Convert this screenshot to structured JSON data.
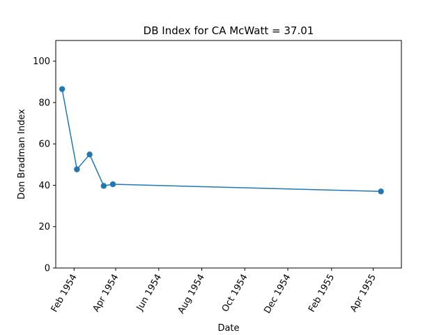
{
  "chart_data": {
    "type": "line",
    "title": "DB Index for CA McWatt = 37.01",
    "xlabel": "Date",
    "ylabel": "Don Bradman Index",
    "ylim": [
      0,
      110
    ],
    "xlim": [
      "1954-01-06",
      "1955-05-11"
    ],
    "y_ticks": [
      0,
      20,
      40,
      60,
      80,
      100
    ],
    "x_ticks": [
      {
        "date": "1954-02-01",
        "label": "Feb 1954"
      },
      {
        "date": "1954-04-01",
        "label": "Apr 1954"
      },
      {
        "date": "1954-06-01",
        "label": "Jun 1954"
      },
      {
        "date": "1954-08-01",
        "label": "Aug 1954"
      },
      {
        "date": "1954-10-01",
        "label": "Oct 1954"
      },
      {
        "date": "1954-12-01",
        "label": "Dec 1954"
      },
      {
        "date": "1955-02-01",
        "label": "Feb 1955"
      },
      {
        "date": "1955-04-01",
        "label": "Apr 1955"
      }
    ],
    "series": [
      {
        "color": "#1f77b4",
        "marker": "circle",
        "points": [
          {
            "x": "1954-01-15",
            "y": 86.5
          },
          {
            "x": "1954-02-05",
            "y": 47.7
          },
          {
            "x": "1954-02-23",
            "y": 54.9
          },
          {
            "x": "1954-03-15",
            "y": 39.7
          },
          {
            "x": "1954-03-28",
            "y": 40.5
          },
          {
            "x": "1955-04-12",
            "y": 37.01
          }
        ]
      }
    ],
    "grid": false
  }
}
